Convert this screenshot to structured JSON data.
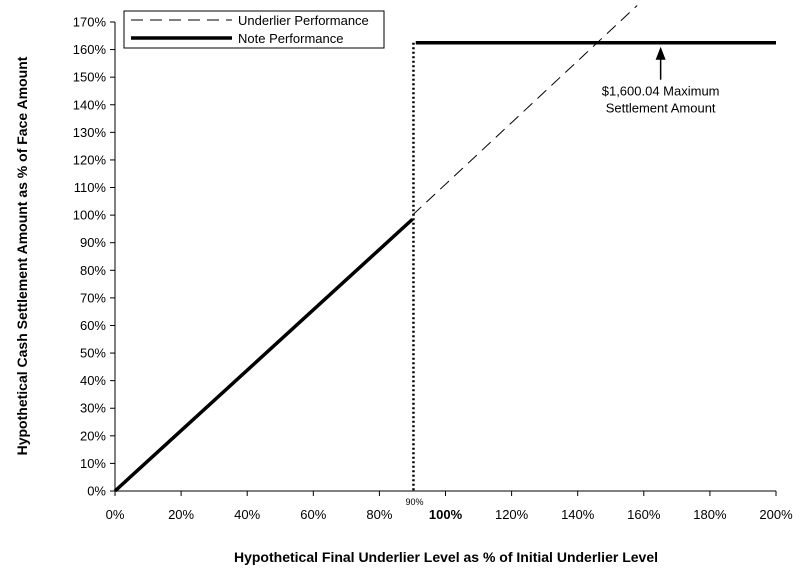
{
  "chart_data": {
    "type": "line",
    "xlabel": "Hypothetical Final Underlier Level as % of Initial Underlier Level",
    "ylabel": "Hypothetical Cash Settlement Amount as % of Face Amount",
    "xlim": [
      0,
      200
    ],
    "ylim": [
      0,
      170
    ],
    "x_ticks": [
      {
        "value": 0,
        "label": "0%"
      },
      {
        "value": 20,
        "label": "20%"
      },
      {
        "value": 40,
        "label": "40%"
      },
      {
        "value": 60,
        "label": "60%"
      },
      {
        "value": 80,
        "label": "80%"
      },
      {
        "value": 100,
        "label": "100%",
        "bold": true
      },
      {
        "value": 120,
        "label": "120%"
      },
      {
        "value": 140,
        "label": "140%"
      },
      {
        "value": 160,
        "label": "160%"
      },
      {
        "value": 180,
        "label": "180%"
      },
      {
        "value": 200,
        "label": "200%"
      }
    ],
    "y_ticks": [
      {
        "value": 0,
        "label": "0%"
      },
      {
        "value": 10,
        "label": "10%"
      },
      {
        "value": 20,
        "label": "20%"
      },
      {
        "value": 30,
        "label": "30%"
      },
      {
        "value": 40,
        "label": "40%"
      },
      {
        "value": 50,
        "label": "50%"
      },
      {
        "value": 60,
        "label": "60%"
      },
      {
        "value": 70,
        "label": "70%"
      },
      {
        "value": 80,
        "label": "80%"
      },
      {
        "value": 90,
        "label": "90%"
      },
      {
        "value": 100,
        "label": "100%"
      },
      {
        "value": 110,
        "label": "110%"
      },
      {
        "value": 120,
        "label": "120%"
      },
      {
        "value": 130,
        "label": "130%"
      },
      {
        "value": 140,
        "label": "140%"
      },
      {
        "value": 150,
        "label": "150%"
      },
      {
        "value": 160,
        "label": "160%"
      },
      {
        "value": 170,
        "label": "170%"
      }
    ],
    "series": [
      {
        "name": "Underlier Performance",
        "style": "dashed",
        "color": "#000000",
        "x": [
          90,
          158
        ],
        "y": [
          100,
          176
        ]
      },
      {
        "name": "Note Performance",
        "style": "solid-thick",
        "color": "#000000",
        "x": [
          0,
          90
        ],
        "y": [
          0,
          98.5
        ]
      },
      {
        "name": "Note Performance",
        "style": "solid-thick",
        "color": "#000000",
        "x": [
          91,
          200
        ],
        "y": [
          162.5,
          162.5
        ]
      }
    ],
    "vline": {
      "x": 90,
      "y_top": 162.5,
      "style": "dotted",
      "label": "90%"
    },
    "annotation": {
      "lines": [
        "$1,600.04 Maximum",
        "Settlement Amount"
      ],
      "arrow_x": 166,
      "arrow_tip_y": 162.5,
      "arrow_tail_y": 148
    },
    "legend": {
      "placement": "top-left"
    },
    "grid": false
  }
}
